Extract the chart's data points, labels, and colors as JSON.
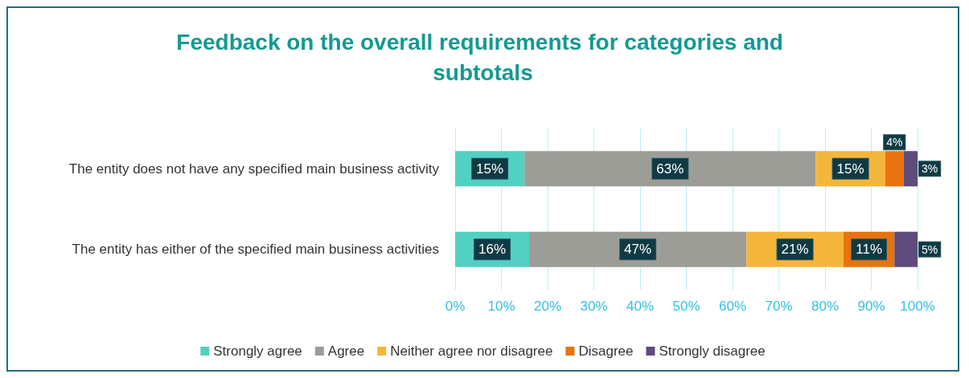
{
  "chart_data": {
    "type": "bar",
    "orientation": "horizontal",
    "stacked": true,
    "title": "Feedback on the overall requirements for categories and subtotals",
    "categories": [
      "The entity does not have any specified main business activity",
      "The entity has either of the specified main business activities"
    ],
    "series": [
      {
        "name": "Strongly agree",
        "color": "#52d0c2",
        "values": [
          15,
          16
        ],
        "value_labels": [
          "15%",
          "16%"
        ]
      },
      {
        "name": "Agree",
        "color": "#9d9d98",
        "values": [
          63,
          47
        ],
        "value_labels": [
          "63%",
          "47%"
        ]
      },
      {
        "name": "Neither agree nor disagree",
        "color": "#f4b63a",
        "values": [
          15,
          21
        ],
        "value_labels": [
          "15%",
          "21%"
        ]
      },
      {
        "name": "Disagree",
        "color": "#e8730f",
        "values": [
          4,
          11
        ],
        "value_labels": [
          "4%",
          "11%"
        ]
      },
      {
        "name": "Strongly disagree",
        "color": "#5f4b7c",
        "values": [
          3,
          5
        ],
        "value_labels": [
          "3%",
          "5%"
        ]
      }
    ],
    "xlim": [
      0,
      100
    ],
    "xticks": [
      {
        "value": 0,
        "label": "0%"
      },
      {
        "value": 10,
        "label": "10%"
      },
      {
        "value": 20,
        "label": "20%"
      },
      {
        "value": 30,
        "label": "30%"
      },
      {
        "value": 40,
        "label": "40%"
      },
      {
        "value": 50,
        "label": "50%"
      },
      {
        "value": 60,
        "label": "60%"
      },
      {
        "value": 70,
        "label": "70%"
      },
      {
        "value": 80,
        "label": "80%"
      },
      {
        "value": 90,
        "label": "90%"
      },
      {
        "value": 100,
        "label": "100%"
      }
    ],
    "grid": "x",
    "legend": "bottom"
  }
}
